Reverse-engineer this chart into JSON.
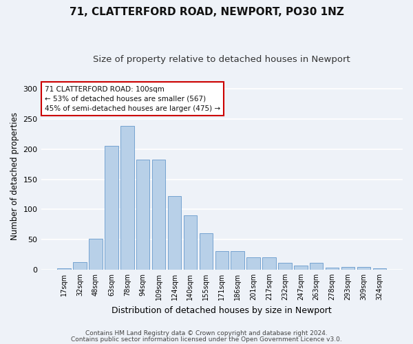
{
  "title1": "71, CLATTERFORD ROAD, NEWPORT, PO30 1NZ",
  "title2": "Size of property relative to detached houses in Newport",
  "xlabel": "Distribution of detached houses by size in Newport",
  "ylabel": "Number of detached properties",
  "categories": [
    "17sqm",
    "32sqm",
    "48sqm",
    "63sqm",
    "78sqm",
    "94sqm",
    "109sqm",
    "124sqm",
    "140sqm",
    "155sqm",
    "171sqm",
    "186sqm",
    "201sqm",
    "217sqm",
    "232sqm",
    "247sqm",
    "263sqm",
    "278sqm",
    "293sqm",
    "309sqm",
    "324sqm"
  ],
  "values": [
    2,
    12,
    51,
    206,
    239,
    183,
    183,
    122,
    90,
    60,
    31,
    31,
    20,
    20,
    11,
    7,
    11,
    3,
    5,
    5,
    2
  ],
  "bar_color": "#b8d0e8",
  "bar_edge_color": "#6699cc",
  "annotation_text": "71 CLATTERFORD ROAD: 100sqm\n← 53% of detached houses are smaller (567)\n45% of semi-detached houses are larger (475) →",
  "annotation_box_facecolor": "#ffffff",
  "annotation_box_edgecolor": "#cc0000",
  "footer1": "Contains HM Land Registry data © Crown copyright and database right 2024.",
  "footer2": "Contains public sector information licensed under the Open Government Licence v3.0.",
  "ylim": [
    0,
    310
  ],
  "yticks": [
    0,
    50,
    100,
    150,
    200,
    250,
    300
  ],
  "background_color": "#eef2f8",
  "grid_color": "#ffffff",
  "title1_fontsize": 11,
  "title2_fontsize": 9.5,
  "tick_fontsize": 7,
  "ylabel_fontsize": 8.5,
  "xlabel_fontsize": 9,
  "footer_fontsize": 6.5
}
